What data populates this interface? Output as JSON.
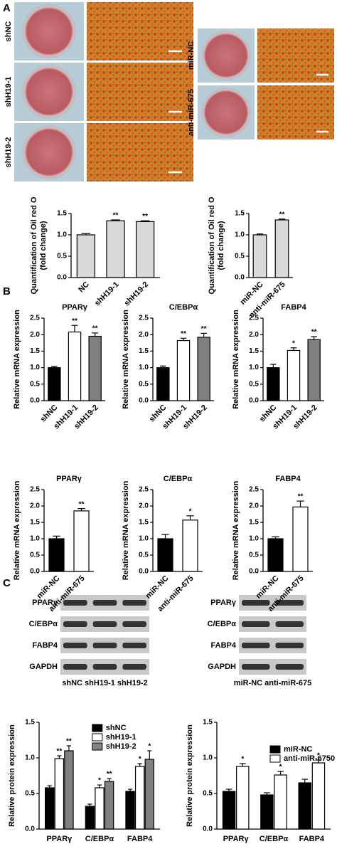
{
  "panels": [
    "A",
    "B",
    "C"
  ],
  "images": {
    "left_labels": [
      "shNC",
      "shH19-1",
      "shH19-2"
    ],
    "right_labels": [
      "miR-NC",
      "anti-miR-675"
    ]
  },
  "blots": {
    "left": {
      "rows": [
        "PPARγ",
        "C/EBPα",
        "FABP4",
        "GAPDH"
      ],
      "lanes": "shNC shH19-1 shH19-2"
    },
    "right": {
      "rows": [
        "PPARγ",
        "C/EBPα",
        "FABP4",
        "GAPDH"
      ],
      "lanes": "miR-NC  anti-miR-675"
    }
  },
  "chart_data": [
    {
      "type": "bar",
      "ylabel": [
        "Quantification of Oil red O",
        "(fold change)"
      ],
      "categories": [
        "NC",
        "shH19-1",
        "shH19-2"
      ],
      "values": [
        1.0,
        1.33,
        1.31
      ],
      "errors": [
        0.03,
        0.02,
        0.02
      ],
      "annotations": [
        null,
        "**",
        "**"
      ],
      "colors": [
        "#d9d9d9",
        "#d9d9d9",
        "#d9d9d9"
      ],
      "ylim": [
        0,
        1.5
      ],
      "yticks": [
        {
          "value": 0,
          "label": "0.0"
        },
        0.5,
        {
          "value": 1,
          "label": "1.0"
        },
        1.5
      ]
    },
    {
      "type": "bar",
      "ylabel": [
        "Quantification of Oil red O",
        "(fold change)"
      ],
      "categories": [
        "miR-NC",
        "anti-miR-675"
      ],
      "values": [
        1.0,
        1.35
      ],
      "errors": [
        0.02,
        0.02
      ],
      "annotations": [
        null,
        "**"
      ],
      "colors": [
        "#d9d9d9",
        "#d9d9d9"
      ],
      "ylim": [
        0,
        1.5
      ],
      "yticks": [
        {
          "value": 0,
          "label": "0.0"
        },
        0.5,
        {
          "value": 1,
          "label": "1.0"
        },
        1.5
      ]
    },
    {
      "type": "bar",
      "title": "PPARγ",
      "ylabel": "Relative mRNA expression",
      "categories": [
        "shNC",
        "shH19-1",
        "shH19-2"
      ],
      "values": [
        1.0,
        2.08,
        1.95
      ],
      "errors": [
        0.04,
        0.2,
        0.1
      ],
      "annotations": [
        null,
        "**",
        "**"
      ],
      "colors": [
        "#000000",
        "#ffffff",
        "#808080"
      ],
      "ylim": [
        0,
        2.5
      ],
      "yticks": [
        {
          "value": 0,
          "label": "0.0"
        },
        0.5,
        {
          "value": 1,
          "label": "1.0"
        },
        1.5,
        {
          "value": 2,
          "label": "2.0"
        },
        2.5
      ]
    },
    {
      "type": "bar",
      "title": "C/EBPα",
      "ylabel": "Relative mRNA expression",
      "categories": [
        "shNC",
        "shH19-1",
        "shH19-2"
      ],
      "values": [
        1.0,
        1.82,
        1.92
      ],
      "errors": [
        0.05,
        0.07,
        0.12
      ],
      "annotations": [
        null,
        "**",
        "**"
      ],
      "colors": [
        "#000000",
        "#ffffff",
        "#808080"
      ],
      "ylim": [
        0,
        2.5
      ],
      "yticks": [
        {
          "value": 0,
          "label": "0.0"
        },
        0.5,
        {
          "value": 1,
          "label": "1.0"
        },
        1.5,
        {
          "value": 2,
          "label": "2.0"
        },
        2.5
      ]
    },
    {
      "type": "bar",
      "title": "FABP4",
      "ylabel": "Relative mRNA expression",
      "categories": [
        "shNC",
        "shH19-1",
        "shH19-2"
      ],
      "values": [
        1.0,
        1.52,
        1.85
      ],
      "errors": [
        0.1,
        0.08,
        0.09
      ],
      "annotations": [
        null,
        "*",
        "**"
      ],
      "colors": [
        "#000000",
        "#ffffff",
        "#808080"
      ],
      "ylim": [
        0,
        2.5
      ],
      "yticks": [
        {
          "value": 0,
          "label": "0.0"
        },
        0.5,
        {
          "value": 1,
          "label": "1.0"
        },
        1.5,
        {
          "value": 2,
          "label": "2.0"
        },
        2.5
      ]
    },
    {
      "type": "bar",
      "title": "PPARγ",
      "ylabel": "Relative mRNA expression",
      "categories": [
        "miR-NC",
        "anti-miR-675"
      ],
      "values": [
        1.0,
        1.85
      ],
      "errors": [
        0.08,
        0.07
      ],
      "annotations": [
        null,
        "**"
      ],
      "colors": [
        "#000000",
        "#ffffff"
      ],
      "ylim": [
        0,
        2.5
      ],
      "yticks": [
        {
          "value": 0,
          "label": "0.0"
        },
        0.5,
        {
          "value": 1,
          "label": "1.0"
        },
        1.5,
        {
          "value": 2,
          "label": "2.0"
        },
        2.5
      ]
    },
    {
      "type": "bar",
      "title": "C/EBPα",
      "ylabel": "Relative mRNA expression",
      "categories": [
        "miR-NC",
        "anti-miR-675"
      ],
      "values": [
        1.0,
        1.57
      ],
      "errors": [
        0.13,
        0.13
      ],
      "annotations": [
        null,
        "*"
      ],
      "colors": [
        "#000000",
        "#ffffff"
      ],
      "ylim": [
        0,
        2.5
      ],
      "yticks": [
        {
          "value": 0,
          "label": "0.0"
        },
        0.5,
        {
          "value": 1,
          "label": "1.0"
        },
        1.5,
        {
          "value": 2,
          "label": "2.0"
        },
        2.5
      ]
    },
    {
      "type": "bar",
      "title": "FABP4",
      "ylabel": "Relative mRNA expression",
      "categories": [
        "miR-NC",
        "anti-miR-675"
      ],
      "values": [
        1.0,
        1.97
      ],
      "errors": [
        0.06,
        0.18
      ],
      "annotations": [
        null,
        "**"
      ],
      "colors": [
        "#000000",
        "#ffffff"
      ],
      "ylim": [
        0,
        2.5
      ],
      "yticks": [
        {
          "value": 0,
          "label": "0.0"
        },
        0.5,
        {
          "value": 1,
          "label": "1.0"
        },
        1.5,
        {
          "value": 2,
          "label": "2.0"
        },
        2.5
      ]
    },
    {
      "type": "bar",
      "ylabel": "Relative protein expression",
      "categories": [
        "PPARγ",
        "C/EBPα",
        "FABP4"
      ],
      "legend": "upper center",
      "series": [
        {
          "name": "shNC",
          "color": "#000000",
          "values": [
            0.58,
            0.32,
            0.53
          ],
          "errors": [
            0.03,
            0.03,
            0.03
          ]
        },
        {
          "name": "shH19-1",
          "color": "#ffffff",
          "values": [
            0.99,
            0.58,
            0.88
          ],
          "errors": [
            0.04,
            0.04,
            0.04
          ],
          "annotations": [
            "**",
            "*",
            "*"
          ]
        },
        {
          "name": "shH19-2",
          "color": "#808080",
          "values": [
            1.1,
            0.67,
            0.98
          ],
          "errors": [
            0.07,
            0.04,
            0.12
          ],
          "annotations": [
            "**",
            "**",
            "*"
          ]
        }
      ],
      "ylim": [
        0,
        1.5
      ],
      "yticks": [
        {
          "value": 0,
          "label": "0.0"
        },
        0.5,
        {
          "value": 1,
          "label": "1.0"
        },
        1.5
      ]
    },
    {
      "type": "bar",
      "ylabel": "Relative protein expression",
      "categories": [
        "PPARγ",
        "C/EBPα",
        "FABP4"
      ],
      "legend": "upper right",
      "series": [
        {
          "name": "miR-NC",
          "color": "#000000",
          "values": [
            0.53,
            0.48,
            0.65
          ],
          "errors": [
            0.03,
            0.03,
            0.05
          ]
        },
        {
          "name": "anti-miR-6750",
          "color": "#ffffff",
          "values": [
            0.88,
            0.76,
            0.93
          ],
          "errors": [
            0.04,
            0.05,
            0.04
          ],
          "annotations": [
            "*",
            "*",
            "*"
          ]
        }
      ],
      "ylim": [
        0,
        1.5
      ],
      "yticks": [
        {
          "value": 0,
          "label": "0.0"
        },
        0.5,
        {
          "value": 1,
          "label": "1.0"
        },
        1.5
      ]
    }
  ]
}
